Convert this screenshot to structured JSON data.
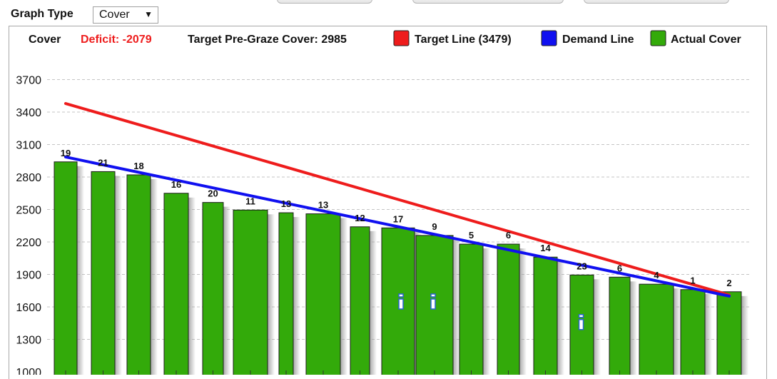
{
  "header": {
    "graph_type_label": "Graph Type",
    "graph_type_value": "Cover",
    "caret": "▼"
  },
  "stats": {
    "cover_label": "Cover",
    "deficit": "Deficit: -2079",
    "target_pre_graze": "Target Pre-Graze Cover: 2985"
  },
  "colors": {
    "target_line": "#ee1c1c",
    "demand_line": "#1010f0",
    "bar_fill": "#33aa0a",
    "deficit_text": "#ee1c1c",
    "info_icon": "#2b63d6"
  },
  "chart_data": {
    "type": "bar",
    "title": "",
    "xlabel": "",
    "ylabel": "",
    "ylim": [
      1000,
      3900
    ],
    "yticks": [
      1000,
      1300,
      1600,
      1900,
      2200,
      2500,
      2800,
      3100,
      3400,
      3700
    ],
    "grid": true,
    "legend_placement": "top-right",
    "categories": [
      "19",
      "21",
      "18",
      "16",
      "20",
      "11",
      "13",
      "13",
      "12",
      "17",
      "9",
      "5",
      "6",
      "14",
      "23",
      "6",
      "4",
      "1",
      "2"
    ],
    "series": [
      {
        "name": "Actual Cover",
        "values": [
          2940,
          2850,
          2820,
          2650,
          2565,
          2495,
          2470,
          2460,
          2340,
          2330,
          2260,
          2180,
          2180,
          2060,
          1895,
          1875,
          1810,
          1760,
          1740
        ]
      }
    ],
    "info_markers": [
      9,
      10,
      14
    ],
    "info_marker_value": 1640,
    "info_marker_value_low": 1450,
    "lines": [
      {
        "name": "Target Line (3479)",
        "start": 3479,
        "end": 1710
      },
      {
        "name": "Demand Line",
        "start": 2985,
        "end": 1700
      }
    ]
  }
}
